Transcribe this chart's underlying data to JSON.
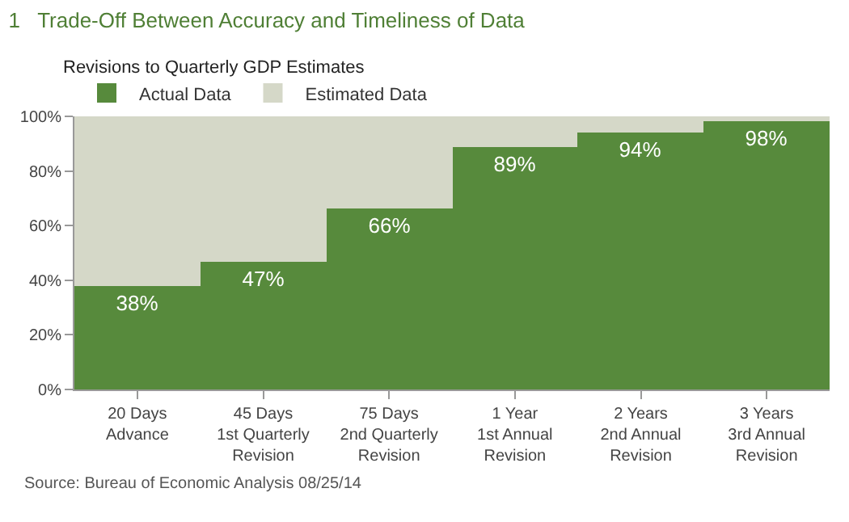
{
  "chart_data": {
    "type": "bar",
    "title": "1   Trade-Off Between Accuracy and Timeliness of Data",
    "subtitle": "Revisions to Quarterly GDP Estimates",
    "categories": [
      "20 Days\nAdvance",
      "45 Days\n1st Quarterly\nRevision",
      "75 Days\n2nd Quarterly\nRevision",
      "1 Year\n1st Annual\nRevision",
      "2 Years\n2nd Annual\nRevision",
      "3 Years\n3rd Annual\nRevision"
    ],
    "stacked": true,
    "series": [
      {
        "name": "Actual Data",
        "color": "#578a3c",
        "values": [
          38,
          47,
          66,
          89,
          94,
          98
        ],
        "value_labels": [
          "38%",
          "47%",
          "66%",
          "89%",
          "94%",
          "98%"
        ]
      },
      {
        "name": "Estimated Data",
        "color": "#d5d8c8",
        "values": [
          62,
          53,
          34,
          11,
          6,
          2
        ]
      }
    ],
    "ylim": [
      0,
      100
    ],
    "yticks": [
      {
        "value": 0,
        "label": "0%"
      },
      {
        "value": 20,
        "label": "20%"
      },
      {
        "value": 40,
        "label": "40%"
      },
      {
        "value": 60,
        "label": "60%"
      },
      {
        "value": 80,
        "label": "80%"
      },
      {
        "value": 100,
        "label": "100%"
      }
    ],
    "legend": "top left",
    "annotations": [
      "Source: Bureau of Economic Analysis 08/25/14"
    ]
  }
}
